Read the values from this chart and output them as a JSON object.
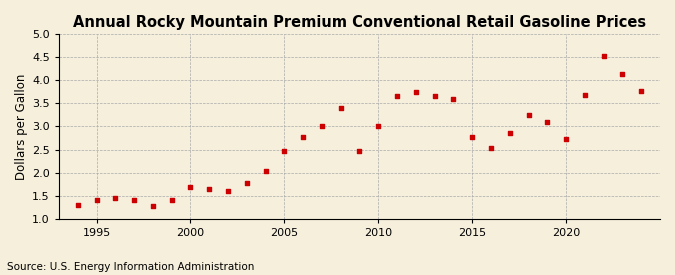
{
  "title": "Annual Rocky Mountain Premium Conventional Retail Gasoline Prices",
  "ylabel": "Dollars per Gallon",
  "source": "Source: U.S. Energy Information Administration",
  "background_color": "#f5efdc",
  "marker_color": "#cc0000",
  "years": [
    1994,
    1995,
    1996,
    1997,
    1998,
    1999,
    2000,
    2001,
    2002,
    2003,
    2004,
    2005,
    2006,
    2007,
    2008,
    2009,
    2010,
    2011,
    2012,
    2013,
    2014,
    2015,
    2016,
    2017,
    2018,
    2019,
    2020,
    2021,
    2022,
    2023,
    2024
  ],
  "values": [
    1.3,
    1.4,
    1.45,
    1.42,
    1.27,
    1.4,
    1.7,
    1.65,
    1.6,
    1.78,
    2.03,
    2.46,
    2.77,
    3.0,
    3.4,
    2.48,
    3.0,
    3.65,
    3.75,
    3.65,
    3.6,
    2.77,
    2.53,
    2.86,
    3.24,
    3.1,
    2.72,
    3.67,
    4.52,
    4.13,
    3.76
  ],
  "ylim": [
    1.0,
    5.0
  ],
  "yticks": [
    1.0,
    1.5,
    2.0,
    2.5,
    3.0,
    3.5,
    4.0,
    4.5,
    5.0
  ],
  "xlim": [
    1993,
    2025
  ],
  "xticks": [
    1995,
    2000,
    2005,
    2010,
    2015,
    2020
  ],
  "title_fontsize": 10.5,
  "label_fontsize": 8.5,
  "tick_fontsize": 8,
  "source_fontsize": 7.5
}
